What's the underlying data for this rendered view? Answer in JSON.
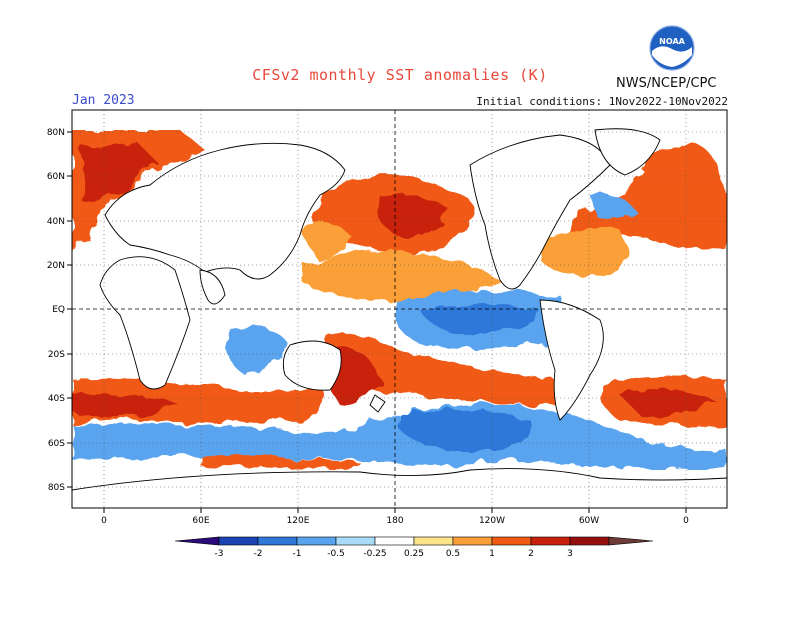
{
  "title": "CFSv2 monthly SST anomalies (K)",
  "organization": "NWS/NCEP/CPC",
  "logo_text": "NOAA",
  "valid_month": "Jan 2023",
  "initial_conditions": "Initial conditions: 1Nov2022-10Nov2022",
  "lat_labels": [
    "80N",
    "60N",
    "40N",
    "20N",
    "EQ",
    "20S",
    "40S",
    "60S",
    "80S"
  ],
  "lon_labels": [
    "0",
    "60E",
    "120E",
    "180",
    "120W",
    "60W",
    "0"
  ],
  "colorbar": {
    "tick_labels": [
      "-3",
      "-2",
      "-1",
      "-0.5",
      "-0.25",
      "0.25",
      "0.5",
      "1",
      "2",
      "3"
    ],
    "colors": [
      "#2a0a7a",
      "#1a44b4",
      "#2f78da",
      "#5aa3ee",
      "#a8dcf8",
      "#ffffff",
      "#fde48a",
      "#fba038",
      "#f05a14",
      "#c8200e",
      "#941010",
      "#6e3a36"
    ]
  }
}
